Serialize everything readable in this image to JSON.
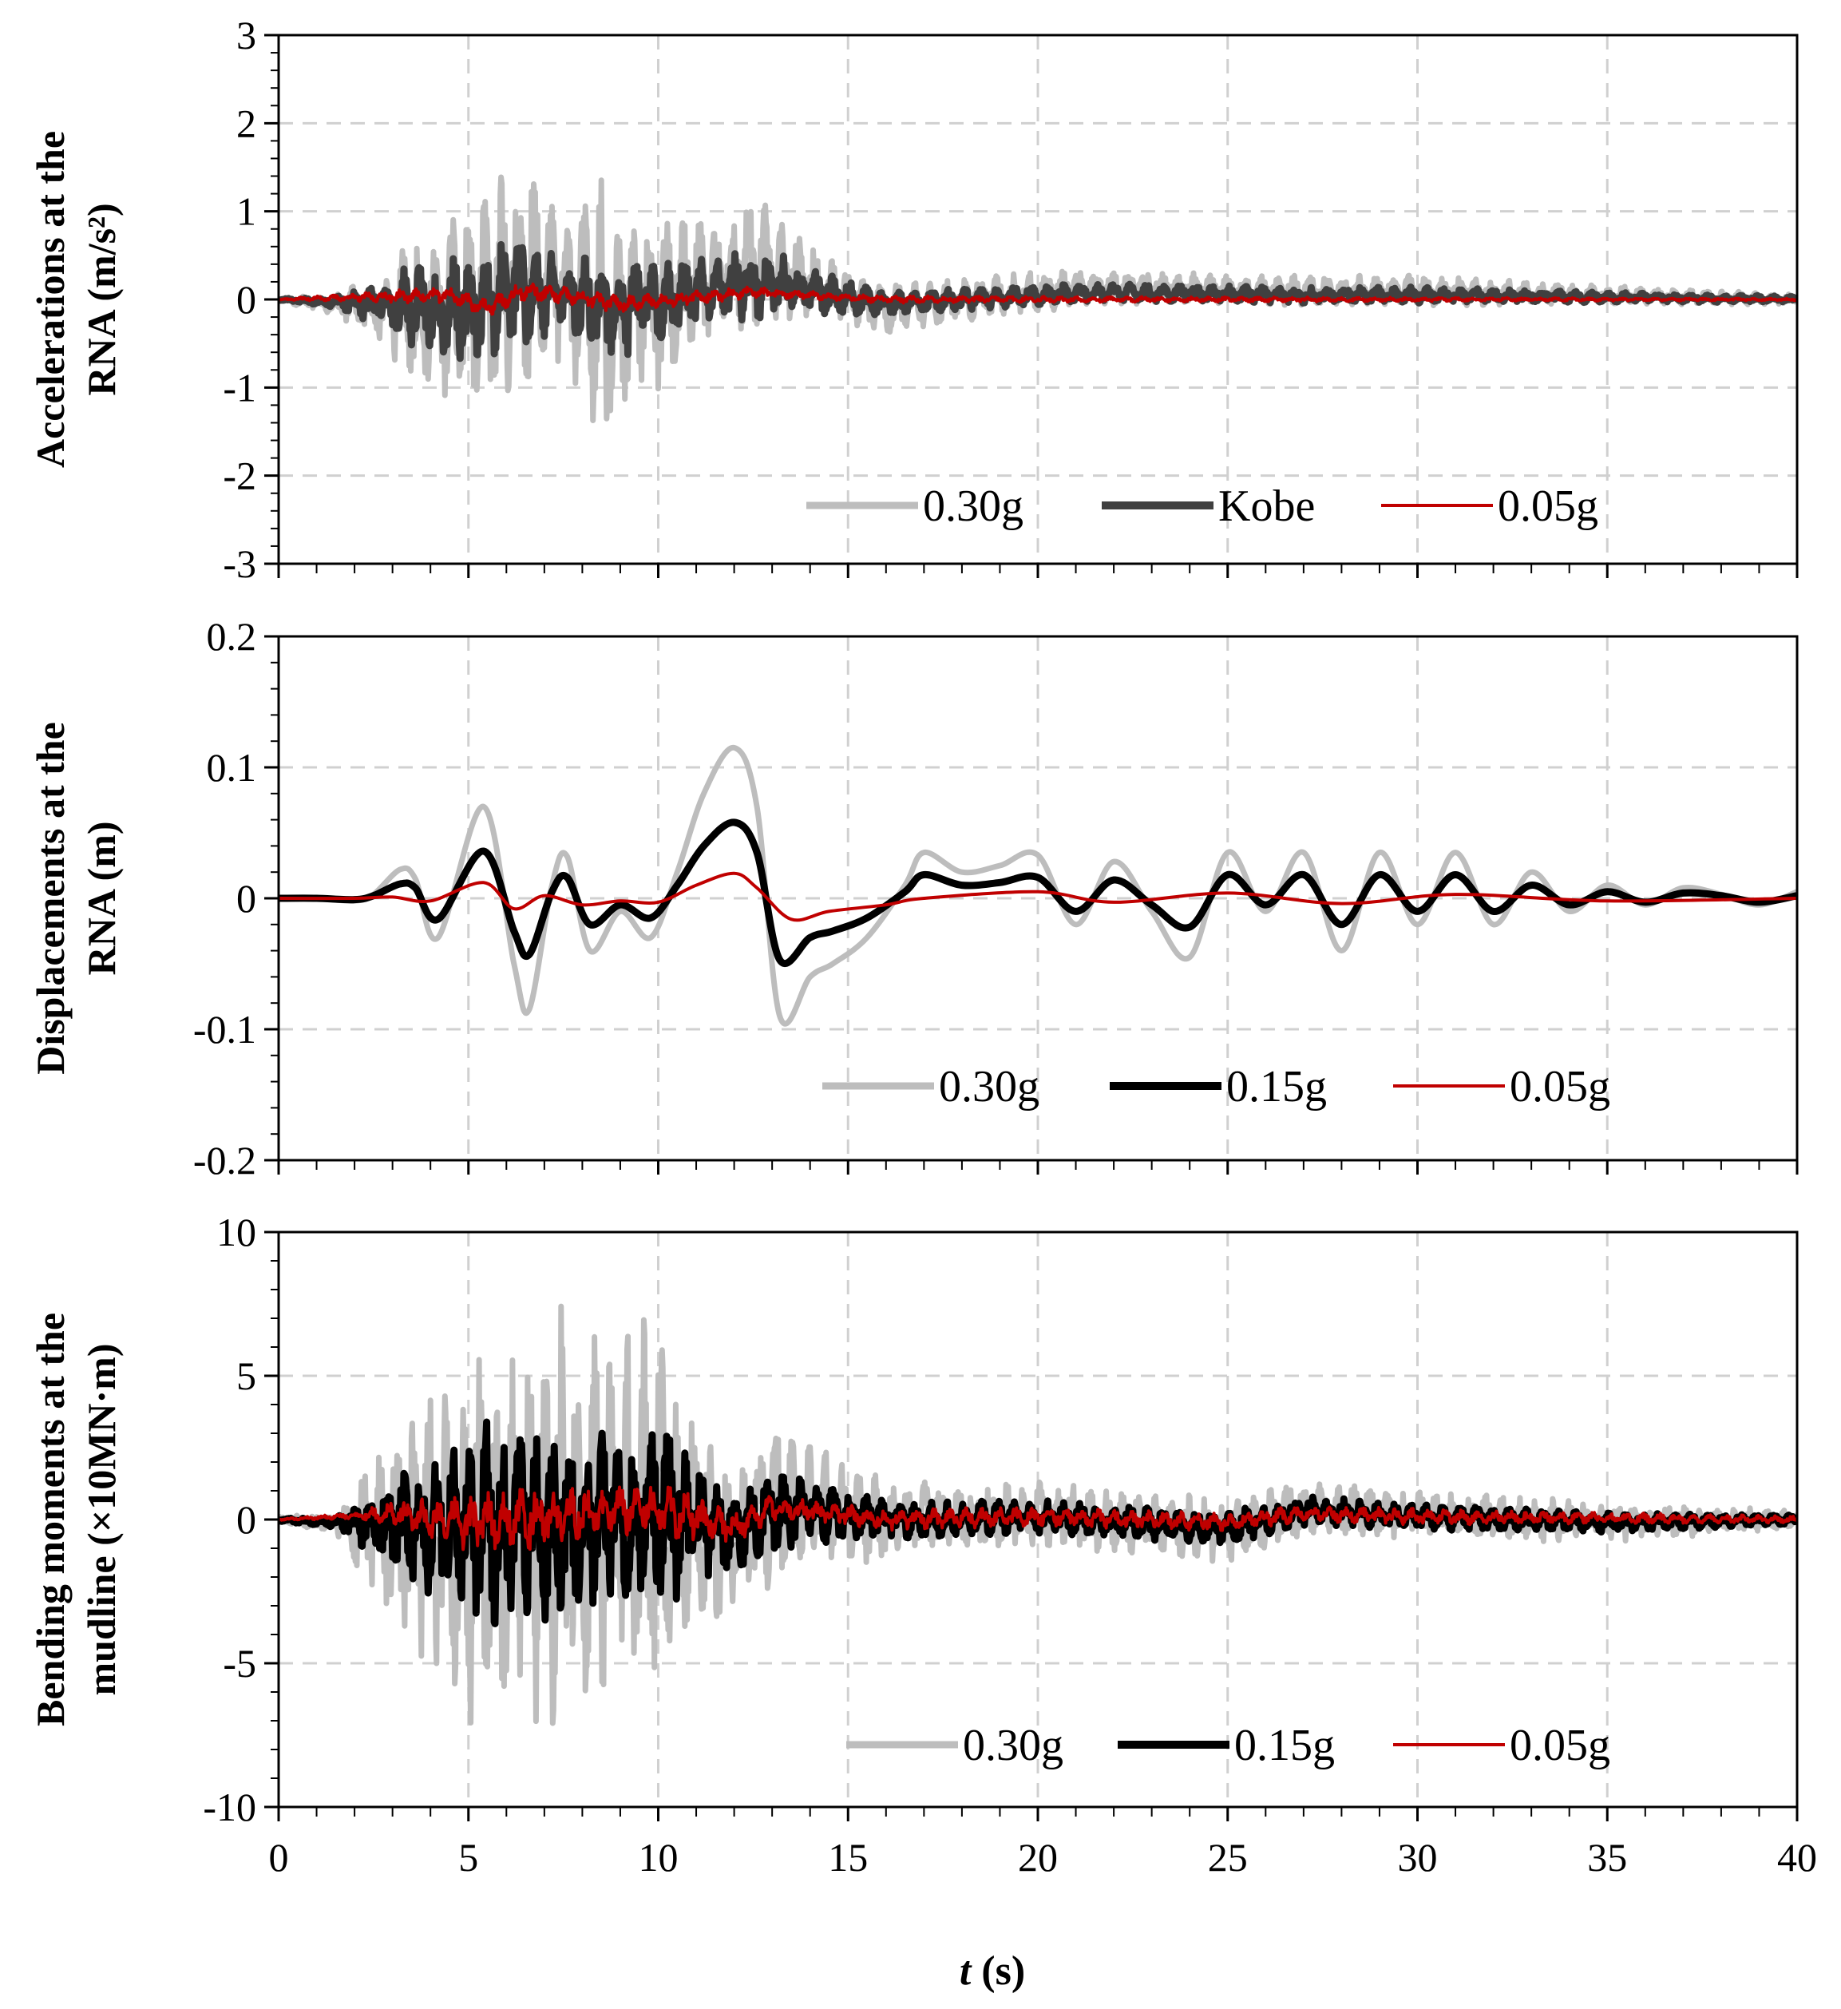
{
  "chart_data": [
    {
      "type": "line",
      "ylabel": [
        "Accelerations  at the",
        "RNA (m/s²)"
      ],
      "xlim": [
        0,
        40
      ],
      "ylim": [
        -3,
        3
      ],
      "yticks": [
        -3,
        -2,
        -1,
        0,
        1,
        2,
        3
      ],
      "yticklabels": [
        "-3",
        "-2",
        "-1",
        "0",
        "1",
        "2",
        "3"
      ],
      "grid": true,
      "legend_position": "bottom-right",
      "series": [
        {
          "name": "0.30g",
          "color": "#bdbdbd",
          "style": "noisy",
          "seed": 11,
          "envelope": {
            "x": [
              0,
              1.5,
              2.5,
              3.5,
              4.5,
              5.5,
              6.5,
              7.5,
              8.5,
              9.5,
              10.5,
              11.5,
              12.5,
              14,
              16,
              20,
              25,
              30,
              35,
              40
            ],
            "y": [
              0.02,
              0.1,
              0.35,
              0.7,
              1.0,
              1.1,
              1.25,
              0.7,
              1.3,
              1.05,
              0.8,
              0.55,
              0.75,
              0.4,
              0.25,
              0.2,
              0.15,
              0.15,
              0.1,
              0.05
            ]
          },
          "trend": {
            "x": [
              0,
              5,
              6.5,
              9,
              12.5,
              16,
              21.5,
              27,
              30,
              40
            ],
            "y": [
              0,
              -0.2,
              0.3,
              -0.2,
              0.4,
              -0.1,
              0.15,
              0.1,
              0.1,
              0
            ]
          }
        },
        {
          "name": "Kobe",
          "color": "#404040",
          "style": "noisy",
          "seed": 23,
          "envelope": {
            "x": [
              0,
              1.5,
              2.5,
              3.5,
              4.5,
              5.5,
              6.5,
              7.5,
              8.5,
              9.5,
              10.5,
              11.5,
              12.5,
              14,
              16,
              20,
              25,
              30,
              35,
              40
            ],
            "y": [
              0.01,
              0.05,
              0.2,
              0.4,
              0.55,
              0.55,
              0.6,
              0.35,
              0.55,
              0.5,
              0.4,
              0.3,
              0.4,
              0.22,
              0.12,
              0.1,
              0.08,
              0.08,
              0.05,
              0.03
            ]
          },
          "trend": {
            "x": [
              0,
              5,
              6.5,
              9,
              12.5,
              16,
              21.5,
              27,
              30,
              40
            ],
            "y": [
              0,
              -0.1,
              0.15,
              -0.1,
              0.2,
              -0.05,
              0.08,
              0.05,
              0.05,
              0
            ]
          }
        },
        {
          "name": "0.05g",
          "color": "#c00000",
          "style": "noisy",
          "seed": 37,
          "envelope": {
            "x": [
              0,
              2,
              4,
              6,
              8,
              10,
              12,
              14,
              20,
              30,
              40
            ],
            "y": [
              0.005,
              0.04,
              0.08,
              0.1,
              0.09,
              0.08,
              0.06,
              0.04,
              0.03,
              0.02,
              0.01
            ]
          },
          "trend": {
            "x": [
              0,
              4.5,
              5.5,
              6.5,
              9,
              12.5,
              16,
              40
            ],
            "y": [
              0,
              0.05,
              -0.1,
              0.1,
              -0.05,
              0.08,
              0,
              0
            ]
          }
        }
      ]
    },
    {
      "type": "line",
      "ylabel": [
        "Displacements  at the",
        "RNA (m)"
      ],
      "xlim": [
        0,
        40
      ],
      "ylim": [
        -0.2,
        0.2
      ],
      "yticks": [
        -0.2,
        -0.1,
        0,
        0.1,
        0.2
      ],
      "yticklabels": [
        "-0.2",
        "-0.1",
        "0",
        "0.1",
        "0.2"
      ],
      "grid": true,
      "legend_position": "bottom-right",
      "series": [
        {
          "name": "0.30g",
          "color": "#bdbdbd",
          "style": "smooth",
          "x": [
            0,
            1,
            2,
            2.5,
            3.2,
            3.6,
            4.2,
            5.4,
            6.2,
            6.6,
            7.2,
            7.6,
            8.2,
            9,
            9.8,
            10.5,
            11.2,
            12,
            12.6,
            13.2,
            14,
            14.6,
            15.5,
            16.5,
            17,
            18,
            19,
            20,
            21,
            22,
            23,
            24,
            25,
            26,
            27,
            28,
            29,
            30,
            31,
            32,
            33,
            34,
            35,
            36,
            37,
            38,
            39,
            40
          ],
          "y": [
            0,
            0,
            -0.002,
            0.003,
            0.022,
            0.015,
            -0.03,
            0.07,
            -0.05,
            -0.085,
            0.01,
            0.032,
            -0.04,
            -0.01,
            -0.03,
            0.02,
            0.08,
            0.115,
            0.07,
            -0.09,
            -0.06,
            -0.05,
            -0.03,
            0.01,
            0.035,
            0.02,
            0.025,
            0.033,
            -0.02,
            0.028,
            -0.01,
            -0.045,
            0.035,
            -0.01,
            0.035,
            -0.04,
            0.035,
            -0.02,
            0.035,
            -0.02,
            0.02,
            -0.01,
            0.01,
            -0.005,
            0.008,
            0.003,
            -0.005,
            0.005
          ]
        },
        {
          "name": "0.15g",
          "color": "#000000",
          "style": "smooth",
          "x": [
            0,
            1,
            2,
            2.5,
            3.2,
            3.6,
            4.2,
            5.4,
            6.2,
            6.6,
            7.2,
            7.6,
            8.2,
            9,
            9.8,
            10.5,
            11.2,
            12,
            12.6,
            13.2,
            14,
            14.6,
            15.5,
            16.5,
            17,
            18,
            19,
            20,
            21,
            22,
            23,
            24,
            25,
            26,
            27,
            28,
            29,
            30,
            31,
            32,
            33,
            34,
            35,
            36,
            37,
            38,
            39,
            40
          ],
          "y": [
            0,
            0,
            -0.001,
            0.002,
            0.011,
            0.008,
            -0.016,
            0.036,
            -0.025,
            -0.043,
            0.005,
            0.016,
            -0.02,
            -0.005,
            -0.015,
            0.01,
            0.04,
            0.058,
            0.035,
            -0.047,
            -0.03,
            -0.025,
            -0.015,
            0.005,
            0.018,
            0.01,
            0.012,
            0.016,
            -0.01,
            0.014,
            -0.005,
            -0.022,
            0.018,
            -0.005,
            0.018,
            -0.02,
            0.018,
            -0.01,
            0.018,
            -0.01,
            0.01,
            -0.005,
            0.005,
            -0.003,
            0.004,
            0.002,
            -0.003,
            0.002
          ]
        },
        {
          "name": "0.05g",
          "color": "#c00000",
          "style": "smooth",
          "x": [
            0,
            2,
            3,
            4,
            5.4,
            6.2,
            7,
            8,
            9,
            10,
            11,
            12,
            12.6,
            13.5,
            14.5,
            16,
            17,
            20,
            22,
            25,
            28,
            31,
            35,
            40
          ],
          "y": [
            0,
            0,
            0.001,
            -0.002,
            0.012,
            -0.008,
            0.002,
            -0.005,
            -0.002,
            -0.003,
            0.01,
            0.019,
            0.008,
            -0.016,
            -0.01,
            -0.005,
            0,
            0.005,
            -0.003,
            0.004,
            -0.004,
            0.003,
            -0.002,
            0
          ]
        }
      ]
    },
    {
      "type": "line",
      "ylabel": [
        "Bending  moments  at the",
        "mudline (×10MN·m)"
      ],
      "xlim": [
        0,
        40
      ],
      "ylim": [
        -10,
        10
      ],
      "yticks": [
        -10,
        -5,
        0,
        5,
        10
      ],
      "yticklabels": [
        "-10",
        "-5",
        "0",
        "5",
        "10"
      ],
      "grid": true,
      "legend_position": "bottom-right",
      "series": [
        {
          "name": "0.30g",
          "color": "#bdbdbd",
          "style": "noisy",
          "seed": 51,
          "envelope": {
            "x": [
              0,
              1.5,
              2.5,
              3.5,
              4.5,
              5.5,
              6.5,
              7,
              8,
              9,
              9.8,
              11,
              12,
              13,
              14,
              16,
              20,
              25,
              30,
              35,
              40
            ],
            "y": [
              0.1,
              0.3,
              2.2,
              3.5,
              4.8,
              6.5,
              5.5,
              6.8,
              6.0,
              5.0,
              6.5,
              3.5,
              2.2,
              2.5,
              2.0,
              1.2,
              1.0,
              1.0,
              0.8,
              0.6,
              0.3
            ]
          },
          "trend": {
            "x": [
              0,
              3,
              5,
              8,
              10,
              12,
              13,
              16,
              20,
              25,
              27,
              30,
              35,
              40
            ],
            "y": [
              0,
              -0.3,
              -0.5,
              0.2,
              0.3,
              -0.8,
              0.5,
              0,
              0.2,
              -0.4,
              0.4,
              0.2,
              -0.1,
              0
            ]
          }
        },
        {
          "name": "0.15g",
          "color": "#000000",
          "style": "noisy",
          "seed": 67,
          "envelope": {
            "x": [
              0,
              1.5,
              2.5,
              3.5,
              4.5,
              5.5,
              6.5,
              7,
              8,
              9,
              9.8,
              11,
              12,
              13,
              14,
              16,
              20,
              25,
              30,
              35,
              40
            ],
            "y": [
              0.05,
              0.15,
              1.1,
              1.8,
              2.4,
              3.3,
              2.8,
              3.4,
              3.0,
              2.5,
              3.3,
              1.8,
              1.1,
              1.3,
              1.0,
              0.6,
              0.5,
              0.5,
              0.4,
              0.3,
              0.15
            ]
          },
          "trend": {
            "x": [
              0,
              3,
              5,
              8,
              10,
              12,
              13,
              16,
              20,
              25,
              27,
              30,
              35,
              40
            ],
            "y": [
              0,
              -0.2,
              -0.3,
              0.1,
              0.2,
              -0.5,
              0.3,
              0,
              0.1,
              -0.3,
              0.3,
              0.1,
              -0.1,
              0
            ]
          }
        },
        {
          "name": "0.05g",
          "color": "#c00000",
          "style": "noisy",
          "seed": 79,
          "envelope": {
            "x": [
              0,
              2,
              3,
              5,
              7,
              9,
              10,
              12,
              14,
              20,
              30,
              40
            ],
            "y": [
              0.02,
              0.1,
              0.4,
              0.9,
              1.0,
              0.8,
              1.0,
              0.5,
              0.35,
              0.3,
              0.25,
              0.1
            ]
          },
          "trend": {
            "x": [
              0,
              3,
              5,
              8,
              10,
              12,
              13,
              16,
              20,
              25,
              27,
              30,
              40
            ],
            "y": [
              0,
              0.2,
              -0.1,
              0.2,
              0.4,
              -0.3,
              0.4,
              0,
              0.1,
              -0.1,
              0.2,
              0.1,
              0
            ]
          }
        }
      ]
    }
  ],
  "shared_x": {
    "xlim": [
      0,
      40
    ],
    "xticks": [
      0,
      5,
      10,
      15,
      20,
      25,
      30,
      35,
      40
    ],
    "xticklabels": [
      "0",
      "5",
      "10",
      "15",
      "20",
      "25",
      "30",
      "35",
      "40"
    ],
    "minor_step": 1,
    "xlabel_var": "t",
    "xlabel_unit": " (s)"
  }
}
